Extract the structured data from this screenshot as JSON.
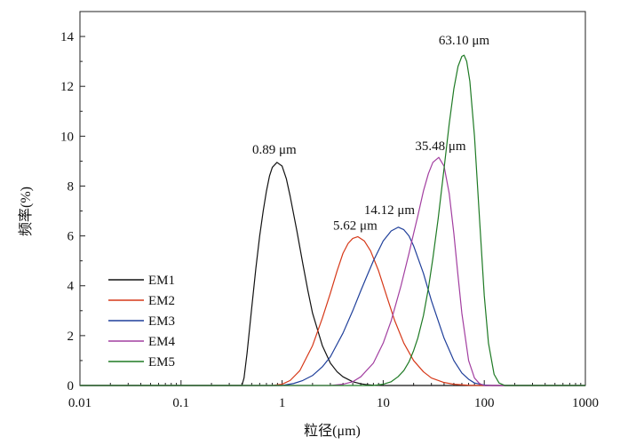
{
  "chart_data": {
    "type": "line",
    "title": "",
    "xlabel": "粒径(μm)",
    "ylabel": "频率(%)",
    "x_scale": "log",
    "xlim": [
      0.01,
      1000
    ],
    "ylim": [
      0,
      15
    ],
    "x_ticks": [
      0.01,
      0.1,
      1,
      10,
      100,
      1000
    ],
    "x_tick_labels": [
      "0.01",
      "0.1",
      "1",
      "10",
      "100",
      "1000"
    ],
    "y_ticks": [
      0,
      2,
      4,
      6,
      8,
      10,
      12,
      14
    ],
    "y_tick_labels": [
      "0",
      "2",
      "4",
      "6",
      "8",
      "10",
      "12",
      "14"
    ],
    "grid": false,
    "legend_position": "bottom-left",
    "series": [
      {
        "name": "EM1",
        "color": "#111111",
        "peak_label": "0.89 μm",
        "x": [
          0.4,
          0.42,
          0.45,
          0.5,
          0.55,
          0.6,
          0.65,
          0.7,
          0.75,
          0.8,
          0.89,
          1.0,
          1.1,
          1.2,
          1.4,
          1.6,
          1.8,
          2.0,
          2.5,
          3.0,
          3.5,
          4.0,
          5.0,
          6.0,
          7.0,
          8.0,
          10.0,
          12.0,
          14.0
        ],
        "y": [
          0,
          0.3,
          1.3,
          3.1,
          4.7,
          6.0,
          7.0,
          7.8,
          8.4,
          8.75,
          8.95,
          8.8,
          8.3,
          7.6,
          6.2,
          4.9,
          3.8,
          2.9,
          1.6,
          0.9,
          0.55,
          0.35,
          0.15,
          0.07,
          0.03,
          0.01,
          0,
          0,
          0
        ]
      },
      {
        "name": "EM2",
        "color": "#d63818",
        "peak_label": "5.62 μm",
        "x": [
          0.8,
          1.0,
          1.2,
          1.5,
          2.0,
          2.5,
          3.0,
          3.5,
          4.0,
          4.5,
          5.0,
          5.62,
          6.5,
          7.5,
          9.0,
          11.0,
          13.0,
          16.0,
          20.0,
          25.0,
          30.0,
          40.0,
          50.0,
          70.0,
          100.0
        ],
        "y": [
          0,
          0.05,
          0.2,
          0.6,
          1.6,
          2.7,
          3.7,
          4.6,
          5.3,
          5.7,
          5.9,
          5.97,
          5.8,
          5.4,
          4.6,
          3.5,
          2.6,
          1.7,
          1.0,
          0.55,
          0.3,
          0.12,
          0.05,
          0.01,
          0
        ]
      },
      {
        "name": "EM3",
        "color": "#1f3f9a",
        "peak_label": "14.12 μm",
        "x": [
          1.0,
          1.3,
          1.6,
          2.0,
          2.5,
          3.0,
          4.0,
          5.0,
          6.0,
          7.0,
          8.0,
          10.0,
          12.0,
          14.12,
          16.0,
          18.0,
          20.0,
          25.0,
          30.0,
          40.0,
          50.0,
          60.0,
          70.0,
          80.0,
          100.0,
          120.0
        ],
        "y": [
          0,
          0.08,
          0.2,
          0.4,
          0.75,
          1.15,
          2.1,
          3.0,
          3.8,
          4.45,
          5.0,
          5.8,
          6.2,
          6.35,
          6.25,
          6.0,
          5.6,
          4.5,
          3.4,
          1.9,
          1.0,
          0.5,
          0.25,
          0.1,
          0.02,
          0
        ]
      },
      {
        "name": "EM4",
        "color": "#a23ea0",
        "peak_label": "35.48 μm",
        "x": [
          3.0,
          4.0,
          5.0,
          6.0,
          8.0,
          10.0,
          12.0,
          15.0,
          18.0,
          20.0,
          22.0,
          25.0,
          28.0,
          31.0,
          35.48,
          40.0,
          45.0,
          50.0,
          55.0,
          60.0,
          70.0,
          80.0,
          90.0,
          100.0
        ],
        "y": [
          0,
          0.05,
          0.15,
          0.35,
          0.9,
          1.7,
          2.6,
          4.0,
          5.3,
          6.1,
          6.8,
          7.8,
          8.5,
          8.95,
          9.15,
          8.8,
          7.7,
          6.1,
          4.4,
          2.9,
          1.0,
          0.3,
          0.07,
          0
        ]
      },
      {
        "name": "EM5",
        "color": "#1e7a24",
        "peak_label": "63.10 μm",
        "x": [
          8.0,
          10.0,
          12.0,
          14.0,
          16.0,
          18.0,
          20.0,
          22.0,
          25.0,
          28.0,
          31.0,
          35.0,
          40.0,
          45.0,
          50.0,
          55.0,
          60.0,
          63.1,
          67.0,
          72.0,
          80.0,
          90.0,
          100.0,
          110.0,
          125.0,
          140.0,
          160.0
        ],
        "y": [
          0,
          0.05,
          0.15,
          0.35,
          0.6,
          0.95,
          1.4,
          1.9,
          2.8,
          3.9,
          5.1,
          6.7,
          8.7,
          10.5,
          11.9,
          12.8,
          13.2,
          13.25,
          13.0,
          12.2,
          10.0,
          6.6,
          3.6,
          1.7,
          0.45,
          0.1,
          0
        ]
      }
    ]
  }
}
